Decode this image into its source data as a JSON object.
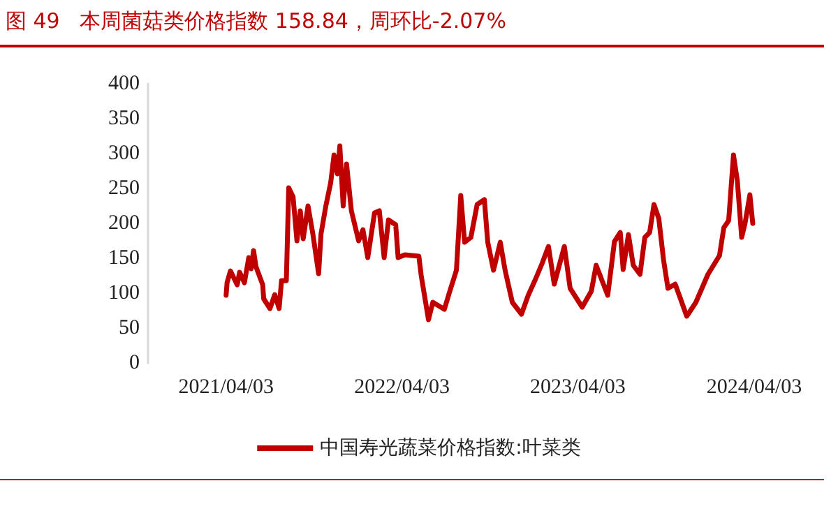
{
  "chart_data": {
    "type": "line",
    "title": "图 49   本周菌菇类价格指数 158.84，周环比-2.07%",
    "x": [
      "2021-04-03",
      "2021-04-05",
      "2021-04-12",
      "2021-04-26",
      "2021-05-01",
      "2021-05-11",
      "2021-05-20",
      "2021-05-25",
      "2021-05-30",
      "2021-06-04",
      "2021-06-18",
      "2021-06-20",
      "2021-07-03",
      "2021-07-13",
      "2021-07-22",
      "2021-07-27",
      "2021-08-06",
      "2021-08-11",
      "2021-08-20",
      "2021-08-28",
      "2021-09-04",
      "2021-09-10",
      "2021-09-20",
      "2021-09-30",
      "2021-10-12",
      "2021-10-17",
      "2021-10-27",
      "2021-11-06",
      "2021-11-13",
      "2021-11-20",
      "2021-11-25",
      "2021-12-02",
      "2021-12-09",
      "2021-12-19",
      "2022-01-03",
      "2022-01-12",
      "2022-01-22",
      "2022-02-05",
      "2022-02-15",
      "2022-02-25",
      "2022-03-06",
      "2022-03-21",
      "2022-03-26",
      "2022-04-09",
      "2022-05-08",
      "2022-05-13",
      "2022-05-28",
      "2022-06-06",
      "2022-06-30",
      "2022-07-10",
      "2022-07-25",
      "2022-08-03",
      "2022-08-11",
      "2022-08-24",
      "2022-09-06",
      "2022-09-21",
      "2022-09-28",
      "2022-10-10",
      "2022-10-24",
      "2022-11-03",
      "2022-11-18",
      "2022-12-07",
      "2022-12-21",
      "2023-01-05",
      "2023-01-19",
      "2023-02-01",
      "2023-02-13",
      "2023-03-06",
      "2023-03-18",
      "2023-04-12",
      "2023-05-01",
      "2023-05-11",
      "2023-06-04",
      "2023-06-18",
      "2023-06-30",
      "2023-07-06",
      "2023-07-17",
      "2023-07-27",
      "2023-08-10",
      "2023-08-20",
      "2023-08-30",
      "2023-09-08",
      "2023-09-18",
      "2023-09-28",
      "2023-10-07",
      "2023-10-22",
      "2023-11-01",
      "2023-11-15",
      "2023-12-04",
      "2023-12-29",
      "2024-01-22",
      "2024-01-31",
      "2024-02-10",
      "2024-02-20",
      "2024-02-28",
      "2024-03-08",
      "2024-03-15",
      "2024-03-25",
      "2024-03-31"
    ],
    "series": [
      {
        "name": "中国寿光蔬菜价格指数:叶菜类",
        "color": "#c00000",
        "values": [
          97,
          115,
          132,
          112,
          130,
          115,
          151,
          135,
          161,
          138,
          112,
          92,
          78,
          98,
          78,
          118,
          118,
          251,
          238,
          175,
          218,
          178,
          225,
          185,
          128,
          185,
          225,
          258,
          298,
          271,
          311,
          225,
          285,
          218,
          175,
          191,
          151,
          215,
          218,
          151,
          205,
          198,
          151,
          155,
          153,
          125,
          62,
          87,
          77,
          100,
          133,
          240,
          173,
          180,
          227,
          234,
          173,
          133,
          173,
          133,
          87,
          70,
          97,
          120,
          143,
          167,
          113,
          167,
          107,
          80,
          103,
          140,
          97,
          174,
          187,
          134,
          184,
          140,
          127,
          180,
          187,
          227,
          207,
          147,
          107,
          113,
          94,
          67,
          87,
          127,
          154,
          194,
          204,
          298,
          261,
          180,
          200,
          241,
          200
        ]
      }
    ],
    "xlim": [
      "2020-10-23",
      "2024-04-03"
    ],
    "xticks": [
      {
        "value": "2021-04-03",
        "label": "2021/04/03"
      },
      {
        "value": "2022-04-03",
        "label": "2022/04/03"
      },
      {
        "value": "2023-04-03",
        "label": "2023/04/03"
      },
      {
        "value": "2024-04-03",
        "label": "2024/04/03"
      }
    ],
    "ylim": [
      0,
      400
    ],
    "yticks": [
      0,
      50,
      100,
      150,
      200,
      250,
      300,
      350,
      400
    ],
    "grid": false,
    "legend": "bottom",
    "marker": "none",
    "line_style": "solid"
  }
}
